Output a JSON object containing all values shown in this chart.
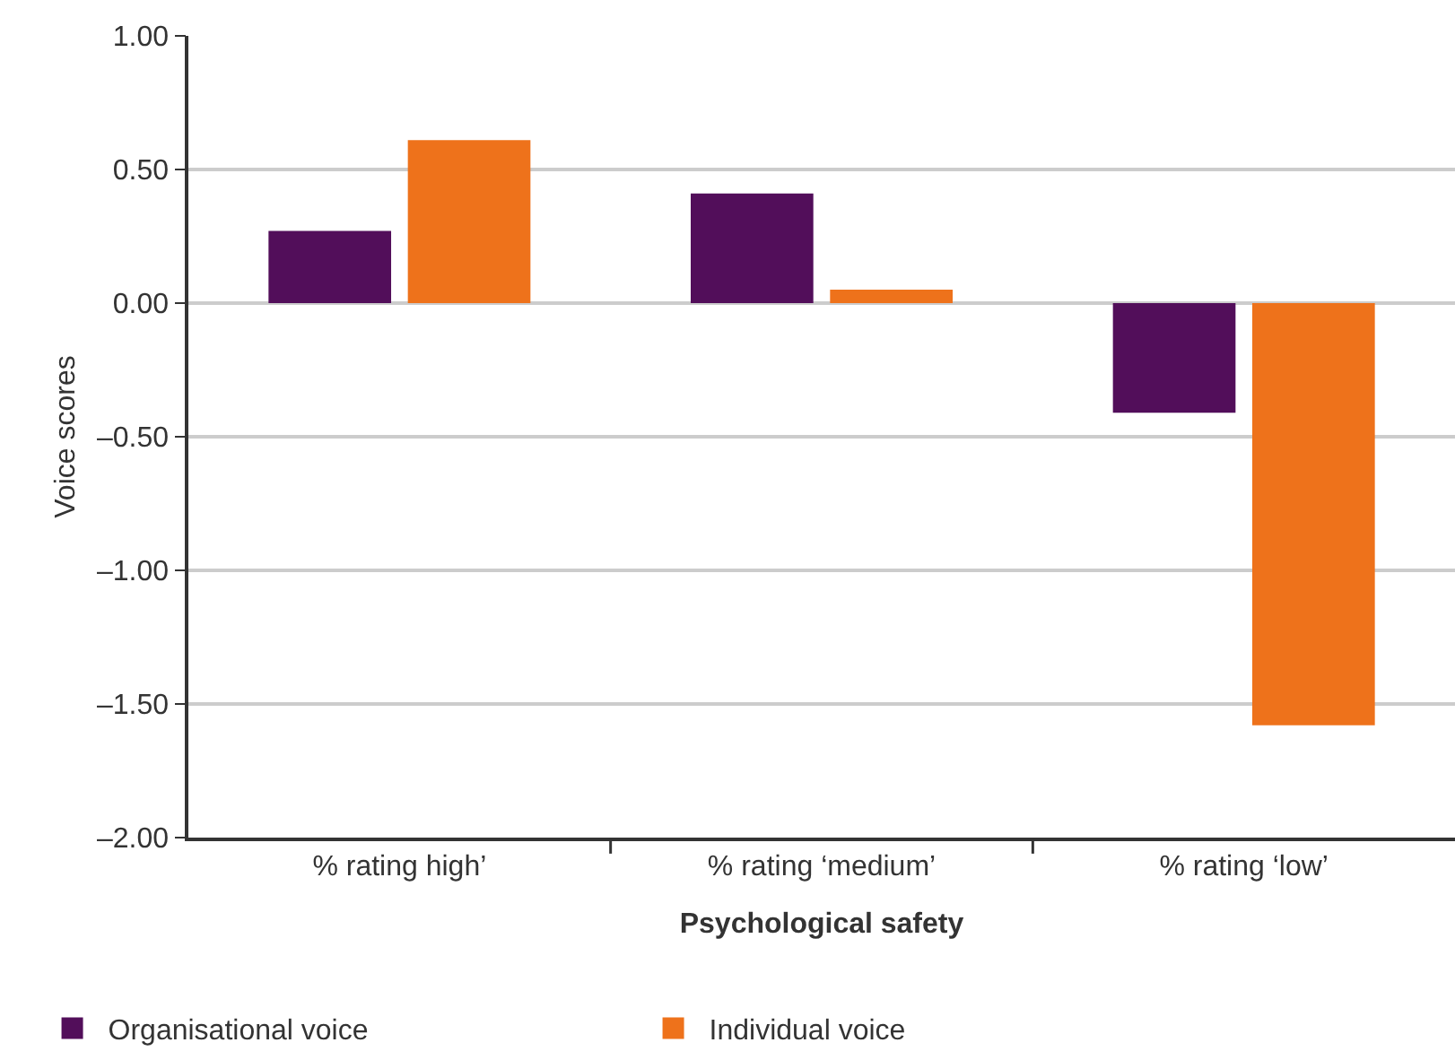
{
  "chart_data": {
    "type": "bar",
    "xlabel": "Psychological safety",
    "ylabel": "Voice scores",
    "categories": [
      "% rating high’",
      "% rating ‘medium’",
      "% rating ‘low’"
    ],
    "series": [
      {
        "name": "Organisational voice",
        "color": "#520e5a",
        "values": [
          0.27,
          0.41,
          -0.41
        ]
      },
      {
        "name": "Individual voice",
        "color": "#ee721b",
        "values": [
          0.61,
          0.05,
          -1.58
        ]
      }
    ],
    "ylim": [
      -2.0,
      1.0
    ],
    "yticks": [
      {
        "value": -2.0,
        "label": "–2.00"
      },
      {
        "value": -1.5,
        "label": "–1.50"
      },
      {
        "value": -1.0,
        "label": "–1.00"
      },
      {
        "value": -0.5,
        "label": "–0.50"
      },
      {
        "value": 0.0,
        "label": "0.00"
      },
      {
        "value": 0.5,
        "label": "0.50"
      },
      {
        "value": 1.0,
        "label": "1.00"
      }
    ],
    "grid": "y",
    "legend": "bottom left"
  }
}
